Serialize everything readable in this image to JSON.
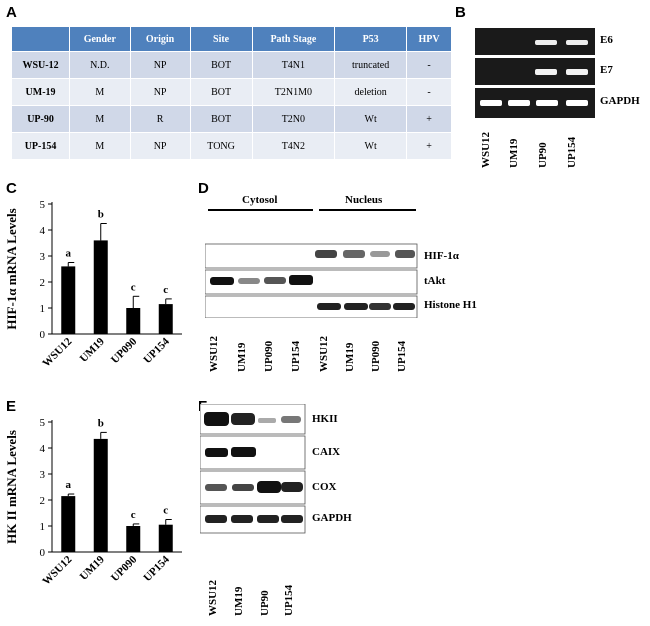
{
  "panels": {
    "A": "A",
    "B": "B",
    "C": "C",
    "D": "D",
    "E": "E",
    "F": "F"
  },
  "table": {
    "headers": [
      "",
      "Gender",
      "Origin",
      "Site",
      "Path Stage",
      "P53",
      "HPV"
    ],
    "rows": [
      [
        "WSU-12",
        "N.D.",
        "NP",
        "BOT",
        "T4N1",
        "truncated",
        "-"
      ],
      [
        "UM-19",
        "M",
        "NP",
        "BOT",
        "T2N1M0",
        "deletion",
        "-"
      ],
      [
        "UP-90",
        "M",
        "R",
        "BOT",
        "T2N0",
        "Wt",
        "+"
      ],
      [
        "UP-154",
        "M",
        "NP",
        "TONG",
        "T4N2",
        "Wt",
        "+"
      ]
    ]
  },
  "gel_b": {
    "bands": [
      "E6",
      "E7",
      "GAPDH"
    ],
    "lanes": [
      "WSU12",
      "UM19",
      "UP90",
      "UP154"
    ]
  },
  "blot_d": {
    "groups": [
      "Cytosol",
      "Nucleus"
    ],
    "bands": [
      "HIF-1α",
      "tAkt",
      "Histone H1"
    ],
    "lanes": [
      "WSU12",
      "UM19",
      "UP090",
      "UP154",
      "WSU12",
      "UM19",
      "UP090",
      "UP154"
    ]
  },
  "blot_f": {
    "bands": [
      "HKII",
      "CAIX",
      "COX",
      "GAPDH"
    ],
    "lanes": [
      "WSU12",
      "UM19",
      "UP90",
      "UP154"
    ]
  },
  "chart_data": [
    {
      "type": "bar",
      "panel": "C",
      "ylabel": "HIF-1α mRNA Levels",
      "xlabel": "",
      "categories": [
        "WSU12",
        "UM19",
        "UP090",
        "UP154"
      ],
      "values": [
        2.6,
        3.6,
        1.0,
        1.15
      ],
      "errors": [
        0.15,
        0.65,
        0.45,
        0.2
      ],
      "annotations": [
        "a",
        "b",
        "c",
        "c"
      ],
      "ylim": [
        0,
        5
      ],
      "yticks": [
        0,
        1,
        2,
        3,
        4,
        5
      ],
      "grid": false,
      "bar_color": "#000000"
    },
    {
      "type": "bar",
      "panel": "E",
      "ylabel": "HK II mRNA Levels",
      "xlabel": "",
      "categories": [
        "WSU12",
        "UM19",
        "UP090",
        "UP154"
      ],
      "values": [
        2.15,
        4.35,
        1.0,
        1.05
      ],
      "errors": [
        0.08,
        0.25,
        0.08,
        0.2
      ],
      "annotations": [
        "a",
        "b",
        "c",
        "c"
      ],
      "ylim": [
        0,
        5
      ],
      "yticks": [
        0,
        1,
        2,
        3,
        4,
        5
      ],
      "grid": false,
      "bar_color": "#000000"
    }
  ]
}
